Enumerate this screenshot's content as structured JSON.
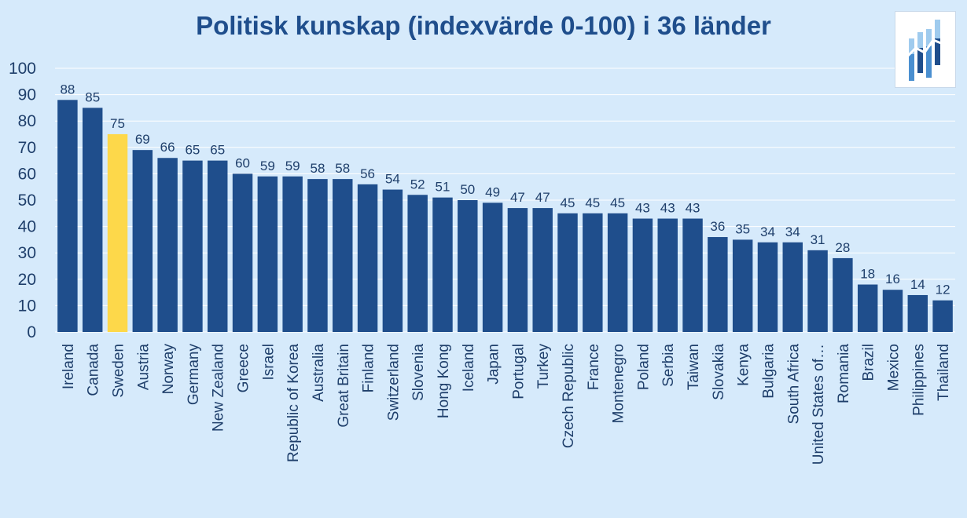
{
  "chart_data": {
    "type": "bar",
    "title": "Politisk kunskap (indexvärde 0-100) i 36 länder",
    "categories": [
      "Ireland",
      "Canada",
      "Sweden",
      "Austria",
      "Norway",
      "Germany",
      "New Zealand",
      "Greece",
      "Israel",
      "Republic of Korea",
      "Australia",
      "Great Britain",
      "Finland",
      "Switzerland",
      "Slovenia",
      "Hong Kong",
      "Iceland",
      "Japan",
      "Portugal",
      "Turkey",
      "Czech Republic",
      "France",
      "Montenegro",
      "Poland",
      "Serbia",
      "Taiwan",
      "Slovakia",
      "Kenya",
      "Bulgaria",
      "South Africa",
      "United States of…",
      "Romania",
      "Brazil",
      "Mexico",
      "Philippines",
      "Thailand"
    ],
    "values": [
      88,
      85,
      75,
      69,
      66,
      65,
      65,
      60,
      59,
      59,
      58,
      58,
      56,
      54,
      52,
      51,
      50,
      49,
      47,
      47,
      45,
      45,
      45,
      43,
      43,
      43,
      36,
      35,
      34,
      34,
      31,
      28,
      18,
      16,
      14,
      12
    ],
    "highlight_category": "Sweden",
    "ylim": [
      0,
      100
    ],
    "yticks": [
      0,
      10,
      20,
      30,
      40,
      50,
      60,
      70,
      80,
      90,
      100
    ],
    "grid": true,
    "colors": {
      "bar": "#1f4e8c",
      "highlight": "#fdd84a",
      "background": "#d6eafb",
      "gridline": "#ffffff"
    }
  },
  "logo": {
    "icon": "bar-chart-logo-icon"
  }
}
